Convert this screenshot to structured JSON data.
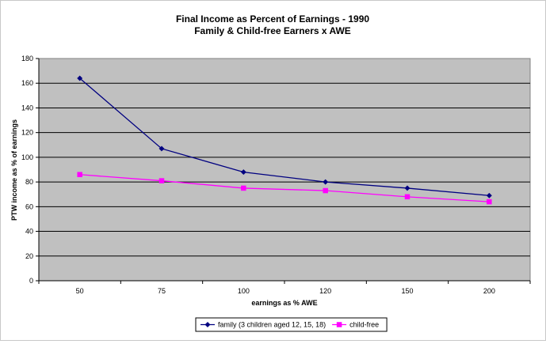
{
  "chart_data": {
    "type": "line",
    "title": "Final Income as Percent of Earnings - 1990",
    "subtitle": "Family & Child-free Earners x AWE",
    "xlabel": "earnings as % AWE",
    "ylabel": "PTW income as % of earnings",
    "categories": [
      "50",
      "75",
      "100",
      "120",
      "150",
      "200"
    ],
    "ylim": [
      0,
      180
    ],
    "y_ticks": [
      "0",
      "20",
      "40",
      "60",
      "80",
      "100",
      "120",
      "140",
      "160",
      "180"
    ],
    "grid": true,
    "legend_position": "bottom",
    "plot_background": "#c0c0c0",
    "series": [
      {
        "name": "family (3 children aged 12, 15, 18)",
        "color": "#000080",
        "marker": "diamond",
        "values": [
          164,
          107,
          88,
          80,
          75,
          69
        ]
      },
      {
        "name": "child-free",
        "color": "#ff00ff",
        "marker": "square",
        "values": [
          86,
          81,
          75,
          73,
          68,
          64
        ]
      }
    ]
  }
}
